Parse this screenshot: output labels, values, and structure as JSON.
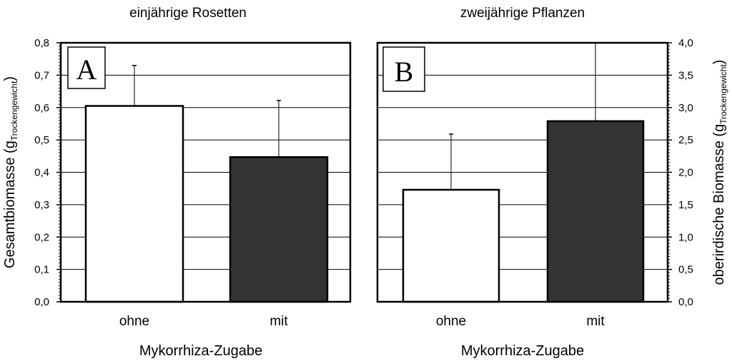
{
  "chart_data": [
    {
      "type": "bar",
      "panel_label": "A",
      "title": "einjährige Rosetten",
      "xlabel": "Mykorrhiza-Zugabe",
      "ylabel": "Gesamtbiomasse (g",
      "ylabel_subscript": "Trockengewicht",
      "ylabel_close": ")",
      "ylabel_side": "left",
      "categories": [
        "ohne",
        "mit"
      ],
      "values": [
        0.605,
        0.447
      ],
      "error": [
        0.125,
        0.175
      ],
      "bar_colors": [
        "#ffffff",
        "#333333"
      ],
      "ylim": [
        0,
        0.8
      ],
      "yticks": [
        0,
        0.1,
        0.2,
        0.3,
        0.4,
        0.5,
        0.6,
        0.7,
        0.8
      ],
      "ytick_labels": [
        "0,0",
        "0,1",
        "0,2",
        "0,3",
        "0,4",
        "0,5",
        "0,6",
        "0,7",
        "0,8"
      ],
      "grid": true
    },
    {
      "type": "bar",
      "panel_label": "B",
      "title": "zweijährige Pflanzen",
      "xlabel": "Mykorrhiza-Zugabe",
      "ylabel": "oberirdische Biomasse (g",
      "ylabel_subscript": "Trockengewicht",
      "ylabel_close": ")",
      "ylabel_side": "right",
      "categories": [
        "ohne",
        "mit"
      ],
      "values": [
        1.73,
        2.79
      ],
      "error": [
        0.86,
        1.21
      ],
      "bar_colors": [
        "#ffffff",
        "#333333"
      ],
      "ylim": [
        0,
        4.0
      ],
      "yticks": [
        0,
        0.5,
        1.0,
        1.5,
        2.0,
        2.5,
        3.0,
        3.5,
        4.0
      ],
      "ytick_labels": [
        "0,0",
        "0,5",
        "1,0",
        "1,5",
        "2,0",
        "2,5",
        "3,0",
        "3,5",
        "4,0"
      ],
      "grid": true
    }
  ]
}
